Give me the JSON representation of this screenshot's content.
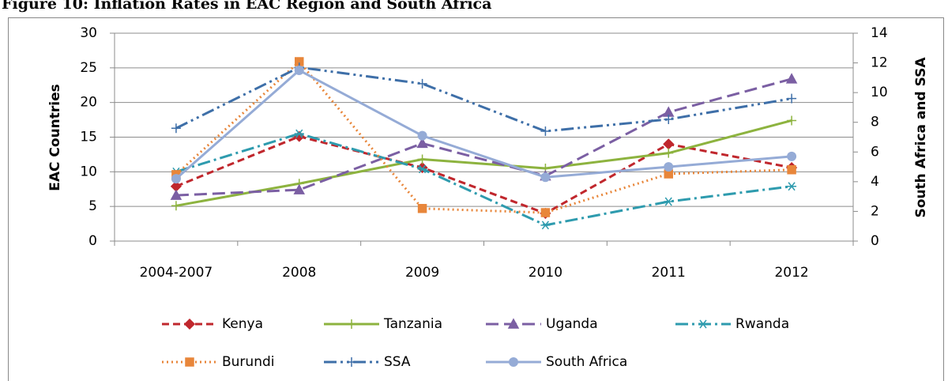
{
  "chart_data": {
    "type": "line",
    "title": "Figure 10: Inflation Rates in EAC Region and South Africa",
    "y_label": "EAC Countries",
    "y2_label": "South Africa and SSA",
    "categories": [
      "2004-2007",
      "2008",
      "2009",
      "2010",
      "2011",
      "2012"
    ],
    "ylim": [
      0,
      30
    ],
    "yticks": [
      0,
      5,
      10,
      15,
      20,
      25,
      30
    ],
    "y2lim": [
      0,
      14
    ],
    "y2ticks": [
      0,
      2,
      4,
      6,
      8,
      10,
      12,
      14
    ],
    "grid": true,
    "series": [
      {
        "name": "Kenya",
        "color": "#C0272D",
        "values": [
          7.9,
          15.1,
          10.6,
          4.0,
          14.0,
          10.6
        ]
      },
      {
        "name": "Tanzania",
        "color": "#8DB33F",
        "values": [
          5.1,
          8.3,
          11.8,
          10.5,
          12.7,
          17.4
        ]
      },
      {
        "name": "Uganda",
        "color": "#7B5FA3",
        "values": [
          6.6,
          7.4,
          14.1,
          9.4,
          18.6,
          23.4
        ]
      },
      {
        "name": "Rwanda",
        "color": "#2E9BAE",
        "values": [
          10.0,
          15.5,
          10.4,
          2.3,
          5.7,
          7.9
        ]
      },
      {
        "name": "Burundi",
        "color": "#E8863A",
        "values": [
          9.6,
          25.9,
          4.7,
          4.1,
          9.7,
          10.3
        ]
      },
      {
        "name": "SSA",
        "color": "#3E6FA8",
        "axis": "y2",
        "values": [
          7.6,
          11.7,
          10.6,
          7.4,
          8.2,
          9.6
        ]
      },
      {
        "name": "South Africa",
        "color": "#95ABD6",
        "axis": "y2",
        "values": [
          4.2,
          11.5,
          7.1,
          4.3,
          5.0,
          5.7
        ]
      }
    ]
  }
}
